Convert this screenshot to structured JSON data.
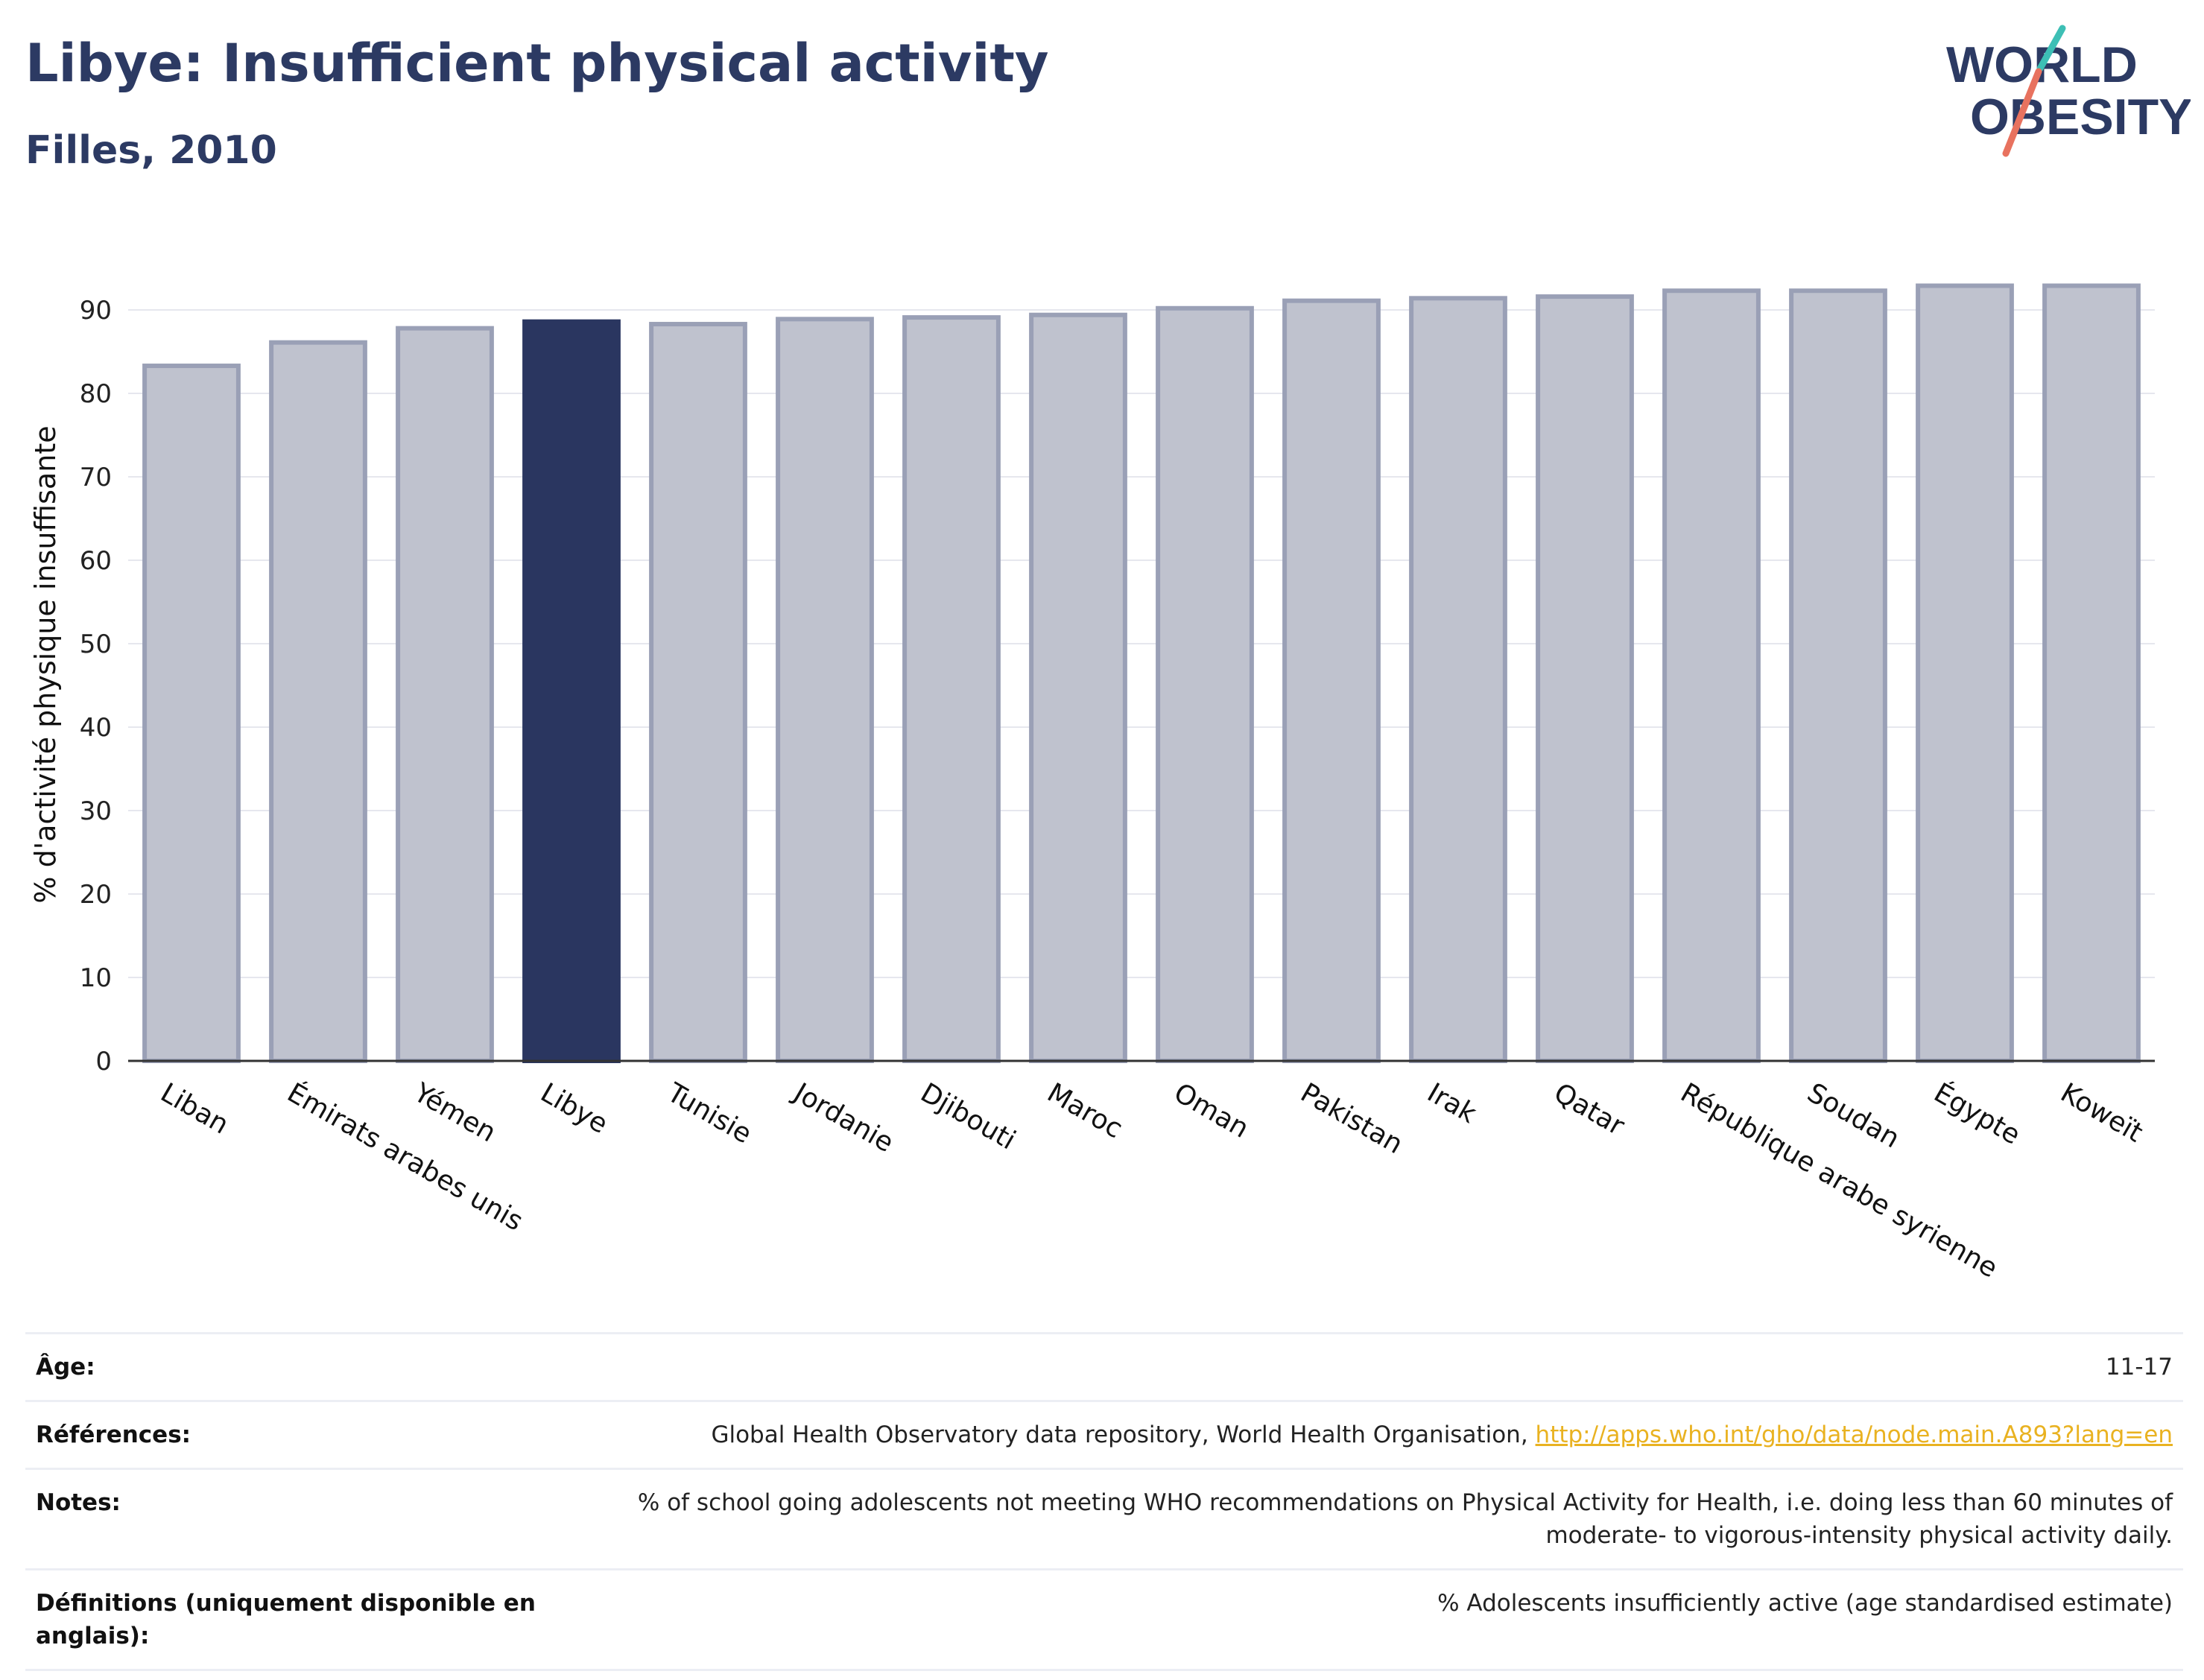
{
  "header": {
    "title": "Libye: Insufficient physical activity",
    "subtitle": "Filles, 2010"
  },
  "logo": {
    "line1": "WORLD",
    "line2": "OBESITY",
    "accent_colors": [
      "#3dbfb5",
      "#e8725f"
    ]
  },
  "chart_data": {
    "type": "bar",
    "ylabel": "% d'activité physique insuffisante",
    "xlabel": "",
    "ylim": [
      0,
      95
    ],
    "yticks": [
      0,
      10,
      20,
      30,
      40,
      50,
      60,
      70,
      80,
      90
    ],
    "grid": true,
    "highlight": "Libye",
    "colors": {
      "bar": "#bfc2ce",
      "bar_edge": "#9aa0b6",
      "highlight": "#2a3660"
    },
    "categories": [
      "Liban",
      "Émirats arabes unis",
      "Yémen",
      "Libye",
      "Tunisie",
      "Jordanie",
      "Djibouti",
      "Maroc",
      "Oman",
      "Pakistan",
      "Irak",
      "Qatar",
      "République arabe syrienne",
      "Soudan",
      "Égypte",
      "Koweït"
    ],
    "values": [
      83.3,
      86.1,
      87.8,
      88.6,
      88.3,
      88.9,
      89.1,
      89.4,
      90.2,
      91.1,
      91.4,
      91.6,
      92.3,
      92.3,
      92.9,
      92.9
    ]
  },
  "meta": [
    {
      "label": "Âge:",
      "value": "11-17"
    },
    {
      "label": "Références:",
      "value": "Global Health Observatory data repository, World Health Organisation, ",
      "link": "http://apps.who.int/gho/data/node.main.A893?lang=en"
    },
    {
      "label": "Notes:",
      "value": "% of school going adolescents not meeting WHO recommendations on Physical Activity for Health, i.e. doing less than 60 minutes of moderate- to vigorous-intensity physical activity daily."
    },
    {
      "label": "Définitions (uniquement disponible en anglais):",
      "value": "% Adolescents insufficiently active (age standardised estimate)"
    }
  ]
}
